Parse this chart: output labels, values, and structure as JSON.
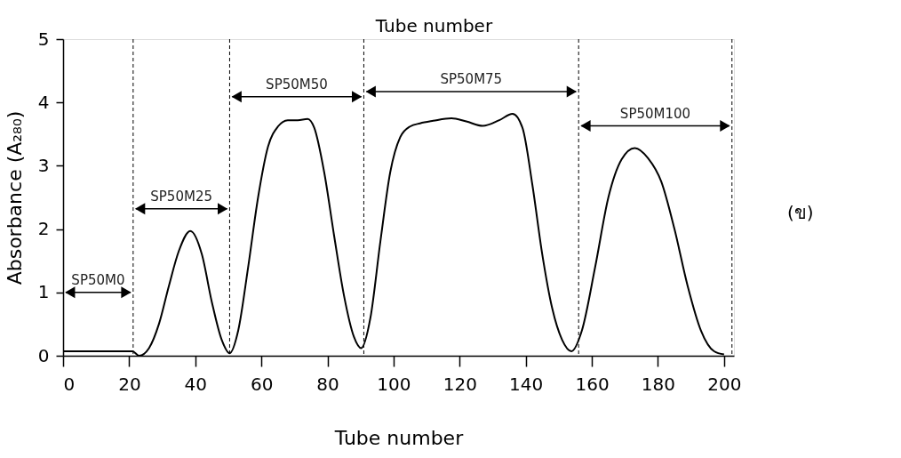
{
  "chart_data": {
    "type": "line",
    "xlabel": "Tube number",
    "ylabel": "Absorbance (A₂₈₀)",
    "xlim": [
      0,
      203
    ],
    "ylim": [
      0,
      5
    ],
    "xticks": [
      0,
      20,
      40,
      60,
      80,
      100,
      120,
      140,
      160,
      180,
      200
    ],
    "yticks": [
      0,
      1,
      2,
      3,
      4,
      5
    ],
    "grid": false,
    "marker": "none",
    "line_style": "solid",
    "series": [
      {
        "color": "#000000",
        "x": [
          0,
          10,
          21,
          23,
          26,
          29,
          32,
          35,
          38.5,
          42,
          45,
          48,
          50.4,
          53,
          56,
          59,
          62,
          65,
          68,
          71,
          74,
          76,
          79,
          82,
          85,
          88,
          90.2,
          93,
          96,
          99,
          102,
          105,
          108,
          112,
          117.5,
          122,
          127,
          132,
          136,
          139,
          142,
          145,
          148,
          151,
          153.8,
          157,
          161,
          165,
          169,
          173,
          177,
          181,
          185,
          189,
          193,
          197,
          200
        ],
        "values": [
          0.07,
          0.07,
          0.07,
          0.0,
          0.12,
          0.5,
          1.1,
          1.65,
          1.97,
          1.6,
          0.85,
          0.25,
          0.04,
          0.4,
          1.4,
          2.5,
          3.3,
          3.62,
          3.72,
          3.72,
          3.74,
          3.6,
          2.9,
          1.9,
          0.95,
          0.3,
          0.12,
          0.6,
          1.8,
          2.9,
          3.45,
          3.62,
          3.67,
          3.71,
          3.75,
          3.7,
          3.63,
          3.72,
          3.82,
          3.6,
          2.7,
          1.6,
          0.75,
          0.25,
          0.07,
          0.4,
          1.4,
          2.5,
          3.1,
          3.28,
          3.12,
          2.75,
          2.0,
          1.1,
          0.4,
          0.07,
          0.02
        ]
      }
    ],
    "ref_lines": [
      {
        "axis": "x",
        "value": 21.2,
        "line_style": "dashed",
        "color": "#000000"
      },
      {
        "axis": "x",
        "value": 50.4,
        "line_style": "dashed",
        "color": "#000000"
      },
      {
        "axis": "x",
        "value": 91,
        "line_style": "dashed",
        "color": "#000000"
      },
      {
        "axis": "x",
        "value": 156,
        "line_style": "dashed",
        "color": "#000000"
      },
      {
        "axis": "x",
        "value": 202.4,
        "line_style": "dashed",
        "color": "#000000"
      }
    ],
    "annotations": [
      "SP50M0",
      "SP50M25",
      "SP50M50",
      "SP50M75",
      "SP50M100",
      "(ข)",
      "Tube number"
    ]
  }
}
